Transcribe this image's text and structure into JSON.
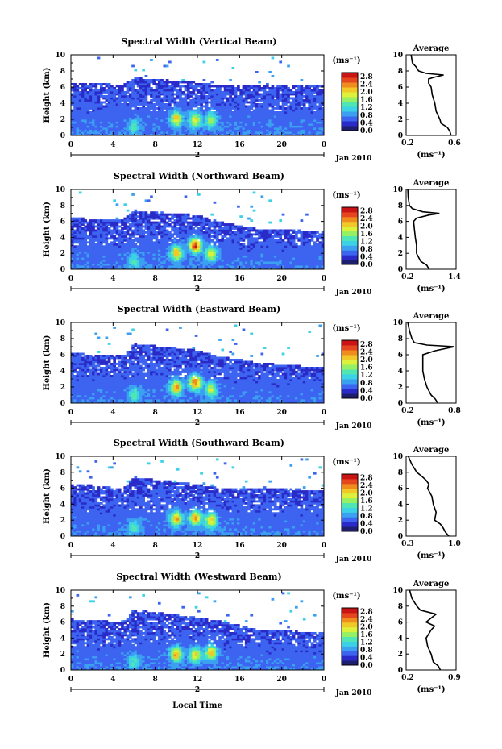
{
  "figure": {
    "xlabel": "Local Time",
    "colorbar_unit": "(ms⁻¹)",
    "colorbar_ticks": [
      "2.8",
      "2.4",
      "2.0",
      "1.6",
      "1.2",
      "0.8",
      "0.4",
      "0.0"
    ],
    "date_label": "Jan 2010",
    "date_tick": "2",
    "profile_title": "Average",
    "profile_xlabel": "(ms⁻¹)",
    "colors": {
      "colormap": [
        "#1e1e6e",
        "#2a2ac8",
        "#3c64f0",
        "#3ca0f0",
        "#3cd2e6",
        "#50e6b4",
        "#96f064",
        "#dcf03c",
        "#f0c828",
        "#f08c1e",
        "#e6461e",
        "#c81414"
      ],
      "background": "#ffffff"
    }
  },
  "chart_data": [
    {
      "type": "heatmap",
      "title": "Spectral Width (Vertical Beam)",
      "xlabel": "",
      "ylabel": "Height (km)",
      "xlim": [
        0,
        24
      ],
      "ylim": [
        0,
        10
      ],
      "xticks": [
        "0",
        "4",
        "8",
        "12",
        "16",
        "20",
        "0"
      ],
      "yticks": [
        "0",
        "2",
        "4",
        "6",
        "8",
        "10"
      ],
      "colorbar": {
        "range": [
          0.0,
          3.0
        ],
        "unit": "ms-1"
      },
      "echo_top_km": {
        "time": [
          0,
          5,
          6,
          12,
          14,
          18,
          24
        ],
        "height": [
          6.6,
          6.3,
          7.2,
          6.6,
          6.2,
          6.3,
          6.3
        ]
      },
      "hotspots": [
        {
          "time": 10.0,
          "height": 2.1,
          "value": 2.0
        },
        {
          "time": 11.8,
          "height": 2.0,
          "value": 1.9
        },
        {
          "time": 13.3,
          "height": 1.9,
          "value": 1.6
        },
        {
          "time": 6.0,
          "height": 1.1,
          "value": 1.2
        }
      ],
      "profile": {
        "title": "Average",
        "xlabel": "(ms-1)",
        "xlim": [
          0.2,
          0.6
        ],
        "xticks": [
          "0.2",
          "0.6"
        ],
        "height": [
          0,
          0.5,
          1,
          1.5,
          2,
          3,
          4,
          5,
          6,
          6.5,
          7,
          7.2,
          7.5,
          7.7,
          8,
          8.5,
          9,
          10
        ],
        "value": [
          0.56,
          0.55,
          0.53,
          0.48,
          0.47,
          0.44,
          0.43,
          0.41,
          0.4,
          0.38,
          0.38,
          0.42,
          0.5,
          0.36,
          0.3,
          0.28,
          0.25,
          0.24
        ]
      }
    },
    {
      "type": "heatmap",
      "title": "Spectral Width (Northward Beam)",
      "xlabel": "",
      "ylabel": "Height (km)",
      "xlim": [
        0,
        24
      ],
      "ylim": [
        0,
        10
      ],
      "xticks": [
        "0",
        "4",
        "8",
        "12",
        "16",
        "20",
        "0"
      ],
      "yticks": [
        "0",
        "2",
        "4",
        "6",
        "8",
        "10"
      ],
      "colorbar": {
        "range": [
          0.0,
          3.0
        ],
        "unit": "ms-1"
      },
      "echo_top_km": {
        "time": [
          0,
          5,
          6,
          12,
          14,
          18,
          24
        ],
        "height": [
          6.4,
          6.3,
          7.4,
          6.8,
          6.0,
          5.0,
          4.8
        ]
      },
      "hotspots": [
        {
          "time": 10.0,
          "height": 2.1,
          "value": 2.1
        },
        {
          "time": 11.8,
          "height": 3.0,
          "value": 2.6
        },
        {
          "time": 13.3,
          "height": 2.0,
          "value": 1.8
        },
        {
          "time": 6.0,
          "height": 1.1,
          "value": 1.2
        }
      ],
      "profile": {
        "title": "Average",
        "xlabel": "(ms-1)",
        "xlim": [
          0.2,
          1.4
        ],
        "xticks": [
          "0.2",
          "1.4"
        ],
        "height": [
          0,
          0.5,
          1,
          2,
          3,
          4,
          5,
          6,
          6.4,
          6.8,
          7.0,
          7.2,
          7.6,
          8,
          9,
          10
        ],
        "value": [
          0.75,
          0.7,
          0.55,
          0.45,
          0.45,
          0.42,
          0.4,
          0.38,
          0.45,
          0.75,
          1.0,
          0.6,
          0.35,
          0.28,
          0.25,
          0.24
        ]
      }
    },
    {
      "type": "heatmap",
      "title": "Spectral Width (Eastward Beam)",
      "xlabel": "",
      "ylabel": "Height (km)",
      "xlim": [
        0,
        24
      ],
      "ylim": [
        0,
        10
      ],
      "xticks": [
        "0",
        "4",
        "8",
        "12",
        "16",
        "20",
        "0"
      ],
      "yticks": [
        "0",
        "2",
        "4",
        "6",
        "8",
        "10"
      ],
      "colorbar": {
        "range": [
          0.0,
          3.0
        ],
        "unit": "ms-1"
      },
      "echo_top_km": {
        "time": [
          0,
          5,
          6,
          12,
          14,
          18,
          24
        ],
        "height": [
          6.2,
          5.9,
          7.4,
          6.6,
          5.8,
          5.0,
          4.4
        ]
      },
      "hotspots": [
        {
          "time": 10.0,
          "height": 2.0,
          "value": 2.2
        },
        {
          "time": 11.8,
          "height": 2.6,
          "value": 2.5
        },
        {
          "time": 13.3,
          "height": 1.7,
          "value": 1.7
        },
        {
          "time": 6.0,
          "height": 1.1,
          "value": 1.2
        }
      ],
      "profile": {
        "title": "Average",
        "xlabel": "(ms-1)",
        "xlim": [
          0.2,
          0.8
        ],
        "xticks": [
          "0.2",
          "0.8"
        ],
        "height": [
          0,
          0.5,
          1,
          2,
          3,
          4,
          5,
          6,
          6.5,
          7,
          7.2,
          7.5,
          8,
          9,
          10
        ],
        "value": [
          0.58,
          0.55,
          0.5,
          0.45,
          0.42,
          0.4,
          0.4,
          0.4,
          0.55,
          0.78,
          0.45,
          0.3,
          0.27,
          0.24,
          0.22
        ]
      }
    },
    {
      "type": "heatmap",
      "title": "Spectral Width (Southward Beam)",
      "xlabel": "",
      "ylabel": "Height (km)",
      "xlim": [
        0,
        24
      ],
      "ylim": [
        0,
        10
      ],
      "xticks": [
        "0",
        "4",
        "8",
        "12",
        "16",
        "20",
        "0"
      ],
      "yticks": [
        "0",
        "2",
        "4",
        "6",
        "8",
        "10"
      ],
      "colorbar": {
        "range": [
          0.0,
          3.0
        ],
        "unit": "ms-1"
      },
      "echo_top_km": {
        "time": [
          0,
          5,
          6,
          12,
          14,
          18,
          24
        ],
        "height": [
          6.6,
          6.0,
          7.4,
          6.5,
          6.0,
          6.0,
          5.8
        ]
      },
      "hotspots": [
        {
          "time": 10.0,
          "height": 2.2,
          "value": 2.1
        },
        {
          "time": 11.8,
          "height": 2.3,
          "value": 2.3
        },
        {
          "time": 13.3,
          "height": 2.0,
          "value": 2.0
        },
        {
          "time": 6.0,
          "height": 1.1,
          "value": 1.2
        }
      ],
      "profile": {
        "title": "Average",
        "xlabel": "(ms-1)",
        "xlim": [
          0.3,
          1.0
        ],
        "xticks": [
          "0.3",
          "1.0"
        ],
        "height": [
          0,
          0.5,
          1,
          1.5,
          2,
          3,
          4,
          5,
          6,
          6.5,
          7,
          7.5,
          8,
          9,
          10
        ],
        "value": [
          0.9,
          0.85,
          0.82,
          0.78,
          0.7,
          0.72,
          0.68,
          0.66,
          0.6,
          0.62,
          0.58,
          0.52,
          0.45,
          0.38,
          0.33
        ]
      }
    },
    {
      "type": "heatmap",
      "title": "Spectral Width (Westward Beam)",
      "xlabel": "Local Time",
      "ylabel": "Height (km)",
      "xlim": [
        0,
        24
      ],
      "ylim": [
        0,
        10
      ],
      "xticks": [
        "0",
        "4",
        "8",
        "12",
        "16",
        "20",
        "0"
      ],
      "yticks": [
        "0",
        "2",
        "4",
        "6",
        "8",
        "10"
      ],
      "colorbar": {
        "range": [
          0.0,
          3.0
        ],
        "unit": "ms-1"
      },
      "echo_top_km": {
        "time": [
          0,
          5,
          6,
          12,
          14,
          18,
          24
        ],
        "height": [
          6.4,
          6.0,
          7.6,
          6.6,
          6.2,
          5.0,
          4.8
        ]
      },
      "hotspots": [
        {
          "time": 10.0,
          "height": 2.0,
          "value": 2.1
        },
        {
          "time": 11.8,
          "height": 1.9,
          "value": 2.0
        },
        {
          "time": 13.3,
          "height": 2.2,
          "value": 2.0
        },
        {
          "time": 6.0,
          "height": 1.1,
          "value": 1.2
        }
      ],
      "profile": {
        "title": "Average",
        "xlabel": "(ms-1)",
        "xlim": [
          0.2,
          0.9
        ],
        "xticks": [
          "0.2",
          "0.9"
        ],
        "height": [
          0,
          0.5,
          1,
          2,
          3,
          4,
          5,
          5.5,
          6,
          6.5,
          7,
          7.5,
          8,
          9,
          10
        ],
        "value": [
          0.68,
          0.65,
          0.58,
          0.55,
          0.5,
          0.48,
          0.55,
          0.6,
          0.48,
          0.55,
          0.62,
          0.4,
          0.35,
          0.28,
          0.25
        ]
      }
    }
  ]
}
